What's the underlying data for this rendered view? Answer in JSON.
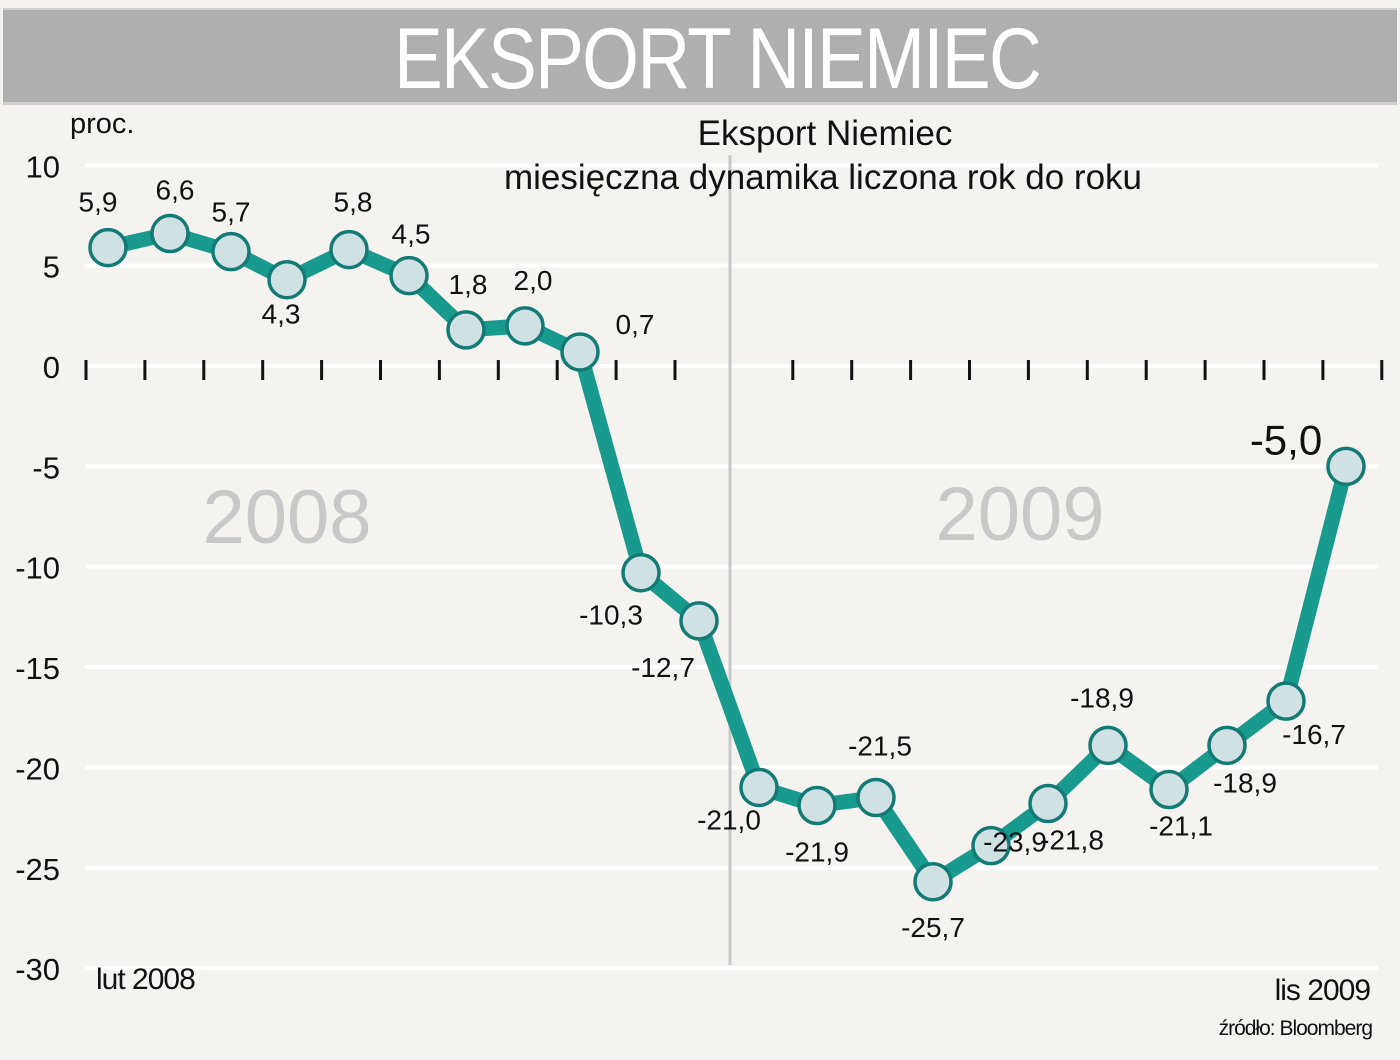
{
  "header": {
    "title": "EKSPORT NIEMIEC"
  },
  "chart_data": {
    "type": "line",
    "title": "Eksport Niemiec",
    "subtitle": "miesięczna dynamika liczona rok do roku",
    "ylabel": "proc.",
    "xlabel": "",
    "ylim": [
      -30,
      10
    ],
    "yticks": [
      10,
      5,
      0,
      -5,
      -10,
      -15,
      -20,
      -25,
      -30
    ],
    "ytick_labels": [
      "10",
      "5",
      "0",
      "-5",
      "-10",
      "-15",
      "-20",
      "-25",
      "-30"
    ],
    "grid": true,
    "x_start_label": "lut 2008",
    "x_end_label": "lis 2009",
    "year_labels": [
      "2008",
      "2009"
    ],
    "categories": [
      "2008-02",
      "2008-03",
      "2008-04",
      "2008-05",
      "2008-06",
      "2008-07",
      "2008-08",
      "2008-09",
      "2008-10",
      "2008-11",
      "2008-12",
      "2009-01",
      "2009-02",
      "2009-03",
      "2009-04",
      "2009-05",
      "2009-06",
      "2009-07",
      "2009-08",
      "2009-09",
      "2009-10",
      "2009-11"
    ],
    "values": [
      5.9,
      6.6,
      5.7,
      4.3,
      5.8,
      4.5,
      1.8,
      2.0,
      0.7,
      -10.3,
      -12.7,
      -21.0,
      -21.9,
      -21.5,
      -25.7,
      -23.9,
      -21.8,
      -18.9,
      -21.1,
      -18.9,
      -16.7,
      -5.0
    ],
    "value_labels": [
      "5,9",
      "6,6",
      "5,7",
      "4,3",
      "5,8",
      "4,5",
      "1,8",
      "2,0",
      "0,7",
      "-10,3",
      "-12,7",
      "-21,0",
      "-21,9",
      "-21,5",
      "-25,7",
      "-23,9",
      "-21,8",
      "-18,9",
      "-21,1",
      "-18,9",
      "-16,7",
      "-5,0"
    ],
    "source": "źródło: Bloomberg",
    "colors": {
      "line": "#1a9a8c",
      "marker_fill": "#cfe1e3",
      "marker_stroke": "#137a74",
      "grid": "#ffffff",
      "year_text": "#c8c8c8",
      "banner": "#afafaf"
    }
  }
}
